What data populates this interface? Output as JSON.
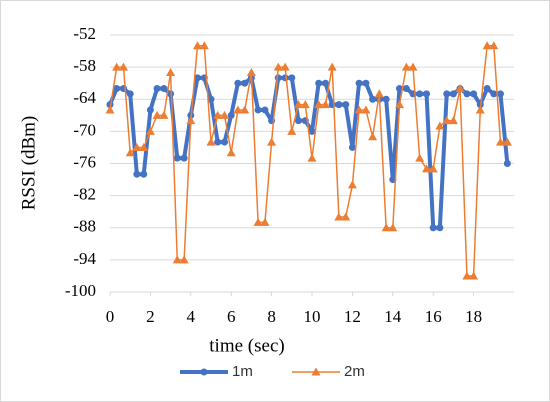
{
  "chart_data": {
    "type": "line",
    "x_label": "time (sec)",
    "y_label": "RSSI (dBm)",
    "x": [
      0,
      0.33,
      0.67,
      1,
      1.33,
      1.67,
      2,
      2.33,
      2.67,
      3,
      3.33,
      3.67,
      4,
      4.33,
      4.67,
      5,
      5.33,
      5.67,
      6,
      6.33,
      6.67,
      7,
      7.33,
      7.67,
      8,
      8.33,
      8.67,
      9,
      9.33,
      9.67,
      10,
      10.33,
      10.67,
      11,
      11.33,
      11.67,
      12,
      12.33,
      12.67,
      13,
      13.33,
      13.67,
      14,
      14.33,
      14.67,
      15,
      15.33,
      15.67,
      16,
      16.33,
      16.67,
      17,
      17.33,
      17.67,
      18,
      18.33,
      18.67,
      19,
      19.33,
      19.67
    ],
    "series": [
      {
        "name": "1m",
        "color": "#4472c4",
        "marker": "circle",
        "values": [
          -65,
          -62,
          -62,
          -63,
          -78,
          -78,
          -66,
          -62,
          -62,
          -63,
          -75,
          -75,
          -67,
          -60,
          -60,
          -64,
          -72,
          -72,
          -67,
          -61,
          -61,
          -60,
          -66,
          -66,
          -68,
          -60,
          -60,
          -60,
          -68,
          -68,
          -70,
          -61,
          -61,
          -65,
          -65,
          -65,
          -73,
          -61,
          -61,
          -64,
          -64,
          -64,
          -79,
          -62,
          -62,
          -63,
          -63,
          -63,
          -88,
          -88,
          -63,
          -63,
          -62,
          -63,
          -63,
          -65,
          -62,
          -63,
          -63,
          -76
        ]
      },
      {
        "name": "2m",
        "color": "#ed7d31",
        "marker": "triangle",
        "values": [
          -66,
          -58,
          -58,
          -74,
          -73,
          -73,
          -70,
          -67,
          -67,
          -59,
          -94,
          -94,
          -68,
          -54,
          -54,
          -72,
          -67,
          -67,
          -74,
          -66,
          -66,
          -59,
          -87,
          -87,
          -72,
          -58,
          -58,
          -70,
          -65,
          -65,
          -75,
          -65,
          -65,
          -58,
          -86,
          -86,
          -80,
          -66,
          -66,
          -71,
          -63,
          -88,
          -88,
          -65,
          -58,
          -58,
          -75,
          -77,
          -77,
          -69,
          -68,
          -68,
          -62,
          -97,
          -97,
          -66,
          -54,
          -54,
          -72,
          -72
        ]
      }
    ],
    "xlim": [
      0,
      20
    ],
    "xticks": [
      0,
      2,
      4,
      6,
      8,
      10,
      12,
      14,
      16,
      18
    ],
    "ylim": [
      -100,
      -52
    ],
    "yticks": [
      -100,
      -94,
      -88,
      -82,
      -76,
      -70,
      -64,
      -58,
      -52
    ],
    "grid": true,
    "legend": "bottom"
  }
}
